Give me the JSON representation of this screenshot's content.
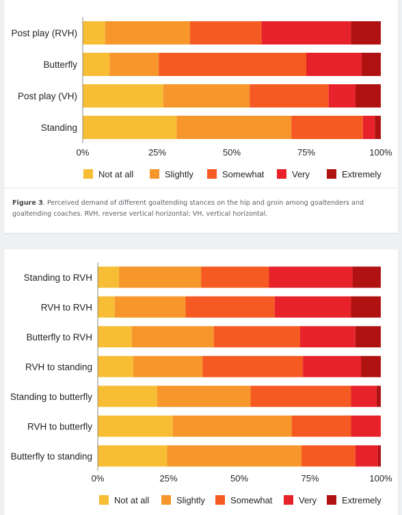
{
  "colors": [
    "#f7bd35",
    "#f7962a",
    "#f55a22",
    "#e8222a",
    "#b01111"
  ],
  "chart_data": [
    {
      "type": "bar",
      "orientation": "horizontal",
      "stacked": true,
      "categories": [
        "Post play (RVH)",
        "Butterfly",
        "Post play (VH)",
        "Standing"
      ],
      "series": [
        {
          "name": "Not at all",
          "values": [
            7.5,
            9,
            27,
            31.5
          ]
        },
        {
          "name": "Slightly",
          "values": [
            28.5,
            16.5,
            29,
            38.5
          ]
        },
        {
          "name": "Somewhat",
          "values": [
            24,
            49.5,
            26.5,
            24
          ]
        },
        {
          "name": "Very",
          "values": [
            30,
            18.5,
            9,
            4
          ]
        },
        {
          "name": "Extremely",
          "values": [
            10,
            6.5,
            8.5,
            2
          ]
        }
      ],
      "xlim": [
        0,
        100
      ],
      "xticks": [
        "0%",
        "25%",
        "50%",
        "75%",
        "100%"
      ],
      "legend": "bottom",
      "grid": false
    },
    {
      "type": "bar",
      "orientation": "horizontal",
      "stacked": true,
      "categories": [
        "Standing to RVH",
        "RVH to RVH",
        "Butterfly to RVH",
        "RVH to standing",
        "Standing to butterfly",
        "RVH to butterfly",
        "Butterfly to standing"
      ],
      "series": [
        {
          "name": "Not at all",
          "values": [
            7.5,
            6,
            12,
            12.5,
            21,
            26.5,
            24.5
          ]
        },
        {
          "name": "Slightly",
          "values": [
            29,
            25,
            29,
            24.5,
            33,
            42,
            47.5
          ]
        },
        {
          "name": "Somewhat",
          "values": [
            24,
            31.5,
            30.5,
            35.5,
            35.5,
            21,
            19
          ]
        },
        {
          "name": "Very",
          "values": [
            29.5,
            27,
            19.5,
            20.5,
            9,
            10.5,
            8
          ]
        },
        {
          "name": "Extremely",
          "values": [
            10,
            10.5,
            9,
            7,
            1.5,
            0,
            1
          ]
        }
      ],
      "xlim": [
        0,
        100
      ],
      "xticks": [
        "0%",
        "25%",
        "50%",
        "75%",
        "100%"
      ],
      "legend": "bottom",
      "grid": false
    }
  ],
  "figure3_caption": {
    "label": "Figure 3",
    "text": ". Perceived demand of different goaltending stances on the hip and groin among goaltenders and goaltending coaches. RVH, reverse vertical horizontal; VH, vertical horizontal."
  }
}
